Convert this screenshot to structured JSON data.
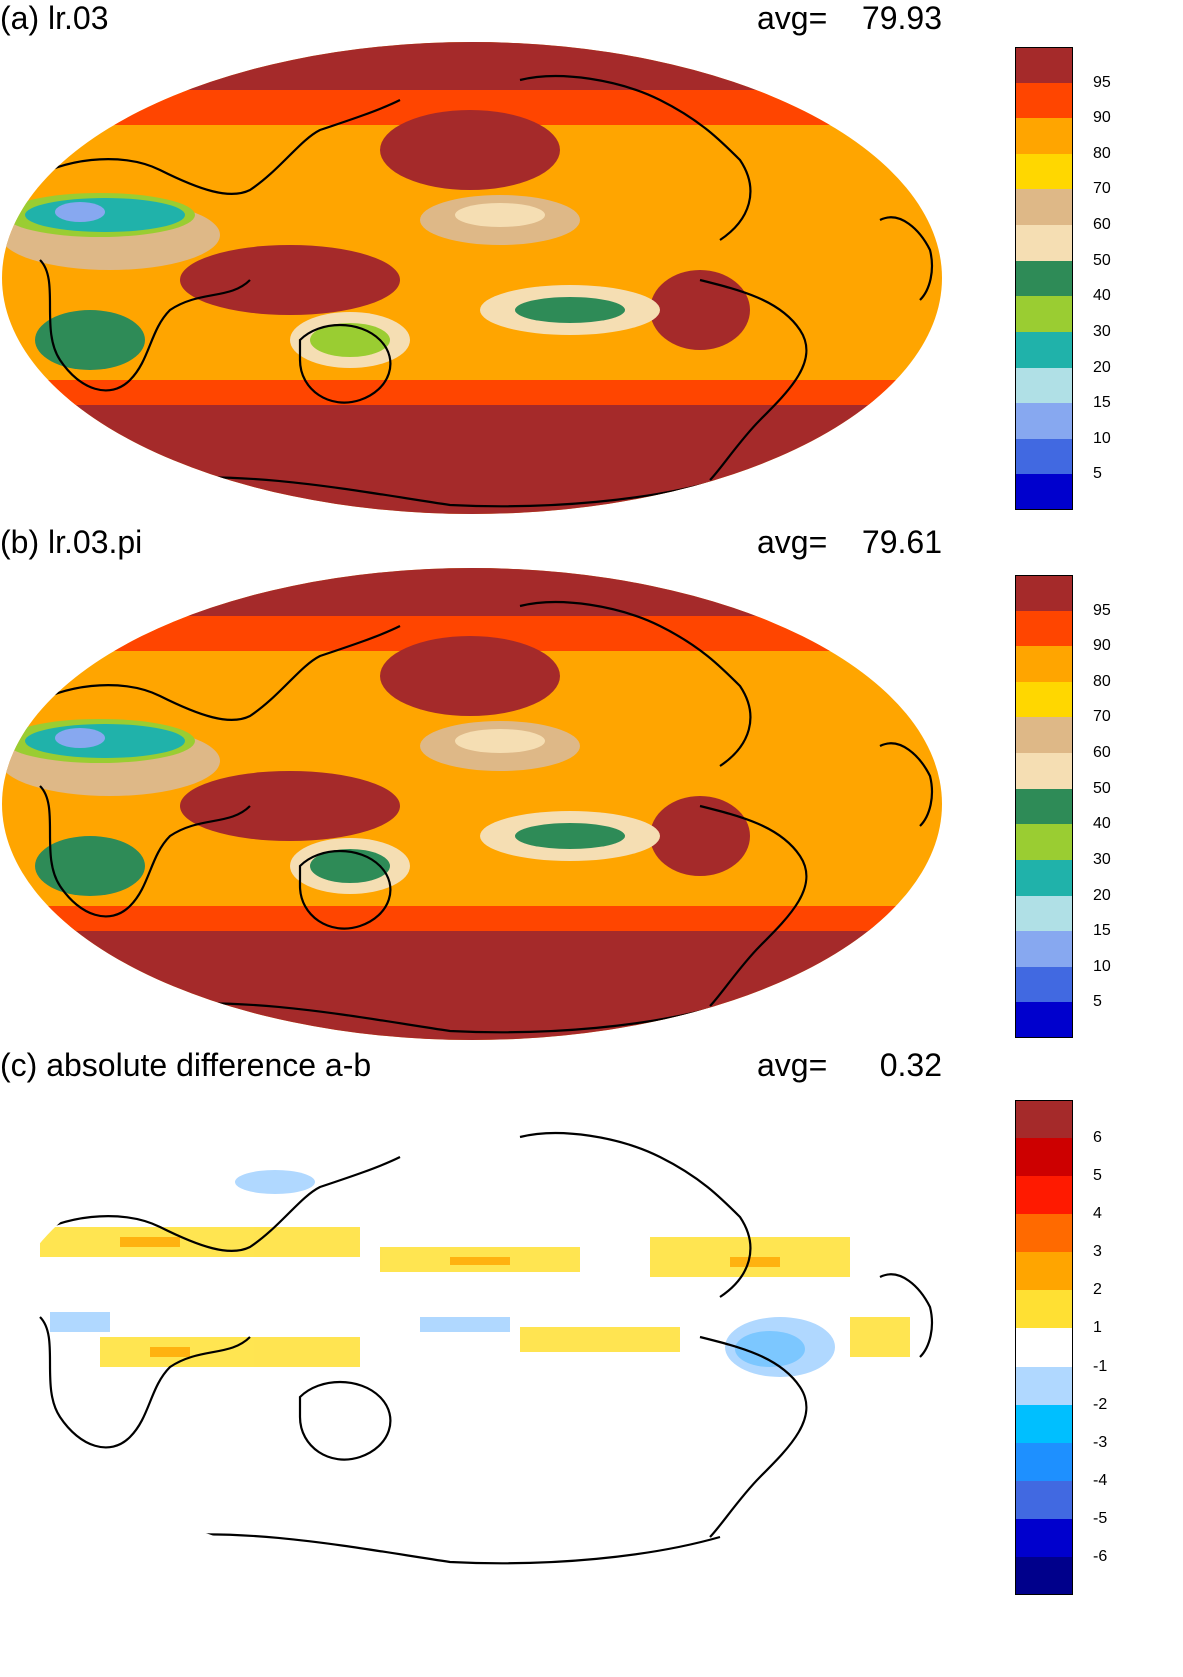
{
  "panels": [
    {
      "id": "a",
      "title": "(a) lr.03",
      "avg_label": "avg=",
      "avg_value": "79.93",
      "colorbar": {
        "labels": [
          "95",
          "90",
          "80",
          "70",
          "60",
          "50",
          "40",
          "30",
          "20",
          "15",
          "10",
          "5"
        ],
        "colors": [
          "#a52a2a",
          "#ff4500",
          "#ffa500",
          "#ffd700",
          "#deb887",
          "#f5deb3",
          "#2e8b57",
          "#9acd32",
          "#20b2aa",
          "#b0e0e6",
          "#87a8f0",
          "#4169e1",
          "#0000cd"
        ]
      }
    },
    {
      "id": "b",
      "title": "(b) lr.03.pi",
      "avg_label": "avg=",
      "avg_value": "79.61",
      "colorbar": {
        "labels": [
          "95",
          "90",
          "80",
          "70",
          "60",
          "50",
          "40",
          "30",
          "20",
          "15",
          "10",
          "5"
        ],
        "colors": [
          "#a52a2a",
          "#ff4500",
          "#ffa500",
          "#ffd700",
          "#deb887",
          "#f5deb3",
          "#2e8b57",
          "#9acd32",
          "#20b2aa",
          "#b0e0e6",
          "#87a8f0",
          "#4169e1",
          "#0000cd"
        ]
      }
    },
    {
      "id": "c",
      "title": "(c) absolute difference a-b",
      "avg_label": "avg=",
      "avg_value": "0.32",
      "colorbar": {
        "labels": [
          "6",
          "5",
          "4",
          "3",
          "2",
          "1",
          "-1",
          "-2",
          "-3",
          "-4",
          "-5",
          "-6"
        ],
        "colors": [
          "#a52a2a",
          "#cd0000",
          "#ff1a00",
          "#ff6a00",
          "#ffa500",
          "#ffe033",
          "#ffffff",
          "#b0d8ff",
          "#00bfff",
          "#1e90ff",
          "#4169e1",
          "#0000cd",
          "#00008b"
        ]
      }
    }
  ]
}
